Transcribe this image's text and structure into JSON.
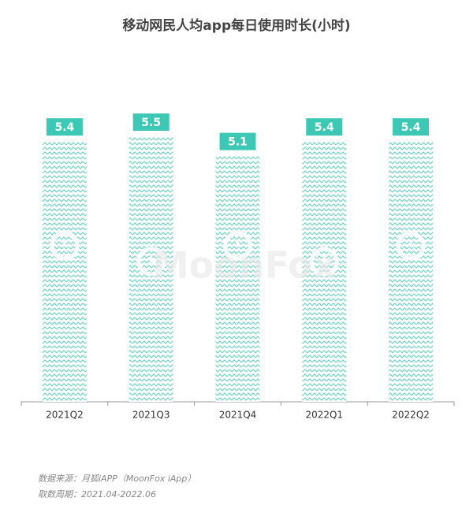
{
  "chart_data": {
    "type": "bar",
    "title": "移动网民人均app每日使用时长(小时)",
    "categories": [
      "2021Q2",
      "2021Q3",
      "2021Q4",
      "2022Q1",
      "2022Q2"
    ],
    "values": [
      5.4,
      5.5,
      5.1,
      5.4,
      5.4
    ],
    "color": "#3cc8b4",
    "ylim": [
      0,
      5.5
    ],
    "watermark": "MoonFox",
    "notes": [
      "数据来源：月狐iAPP（MoonFox iApp）",
      "取数周期：2021.04-2022.06"
    ]
  }
}
